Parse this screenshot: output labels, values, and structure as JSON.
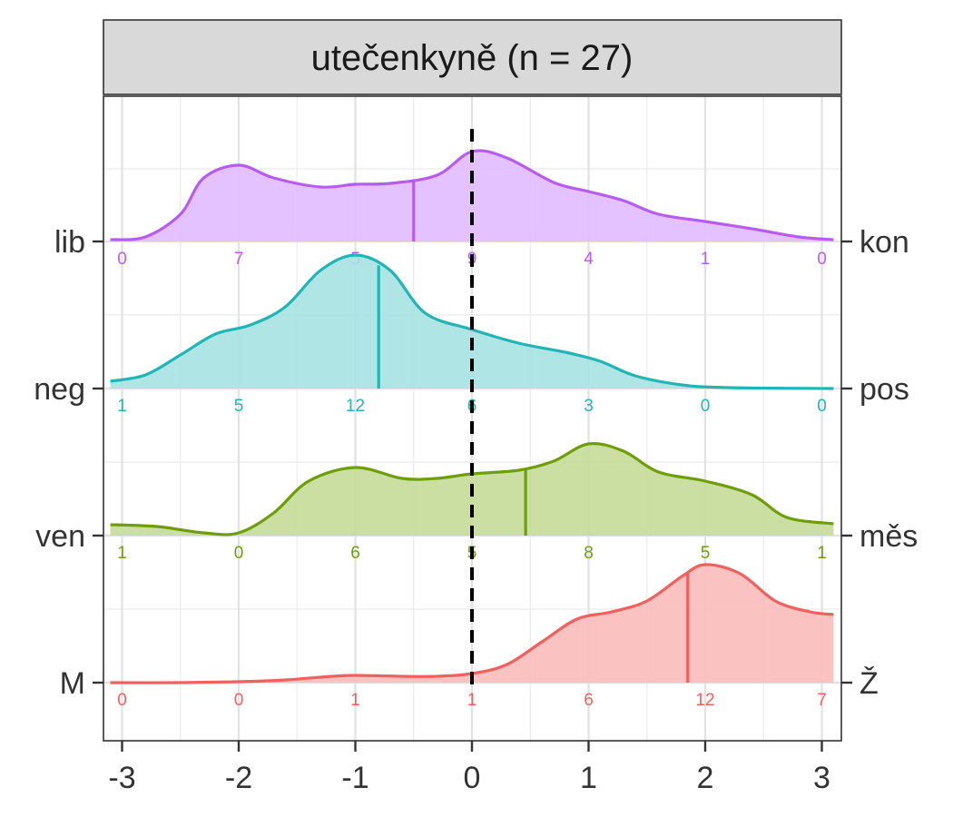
{
  "chart_data": {
    "type": "ridgeline-density",
    "title": "utečenkyně (n = 27)",
    "xlim": [
      -3.1,
      3.1
    ],
    "x_ticks": [
      -3,
      -2,
      -1,
      0,
      1,
      2,
      3
    ],
    "x_tick_labels": [
      "-3",
      "-2",
      "-1",
      "0",
      "1",
      "2",
      "3"
    ],
    "reference_line_x": 0,
    "grid": true,
    "series": [
      {
        "left_label": "lib",
        "right_label": "kon",
        "color": "#B65CF0",
        "fill": "#E1BBFF",
        "mean": -0.5,
        "count_x": [
          -3,
          -2,
          -1,
          0,
          1,
          2,
          3
        ],
        "counts": [
          "0",
          "7",
          "5",
          "9",
          "4",
          "1",
          "0"
        ],
        "density": [
          [
            -3.1,
            0.02
          ],
          [
            -2.8,
            0.05
          ],
          [
            -2.5,
            0.3
          ],
          [
            -2.3,
            0.7
          ],
          [
            -2.0,
            0.84
          ],
          [
            -1.7,
            0.7
          ],
          [
            -1.3,
            0.6
          ],
          [
            -1.0,
            0.63
          ],
          [
            -0.7,
            0.64
          ],
          [
            -0.3,
            0.73
          ],
          [
            0.0,
            0.99
          ],
          [
            0.3,
            0.92
          ],
          [
            0.7,
            0.65
          ],
          [
            1.0,
            0.55
          ],
          [
            1.3,
            0.45
          ],
          [
            1.6,
            0.3
          ],
          [
            2.0,
            0.22
          ],
          [
            2.4,
            0.14
          ],
          [
            2.8,
            0.05
          ],
          [
            3.1,
            0.02
          ]
        ]
      },
      {
        "left_label": "neg",
        "right_label": "pos",
        "color": "#21B5B5",
        "fill": "#A6E2E2",
        "mean": -0.8,
        "count_x": [
          -3,
          -2,
          -1,
          0,
          1,
          2,
          3
        ],
        "counts": [
          "1",
          "5",
          "12",
          "6",
          "3",
          "0",
          "0"
        ],
        "density": [
          [
            -3.1,
            0.08
          ],
          [
            -2.8,
            0.15
          ],
          [
            -2.5,
            0.37
          ],
          [
            -2.2,
            0.6
          ],
          [
            -1.9,
            0.7
          ],
          [
            -1.6,
            0.9
          ],
          [
            -1.3,
            1.3
          ],
          [
            -1.0,
            1.47
          ],
          [
            -0.7,
            1.3
          ],
          [
            -0.4,
            0.83
          ],
          [
            0.0,
            0.65
          ],
          [
            0.4,
            0.5
          ],
          [
            0.8,
            0.4
          ],
          [
            1.1,
            0.3
          ],
          [
            1.4,
            0.14
          ],
          [
            1.8,
            0.04
          ],
          [
            2.2,
            0.01
          ],
          [
            3.1,
            0.0
          ]
        ]
      },
      {
        "left_label": "ven",
        "right_label": "měs",
        "color": "#6E9F0A",
        "fill": "#C5DC99",
        "mean": 0.46,
        "count_x": [
          -3,
          -2,
          -1,
          0,
          1,
          2,
          3
        ],
        "counts": [
          "1",
          "0",
          "6",
          "5",
          "8",
          "5",
          "1"
        ],
        "density": [
          [
            -3.1,
            0.12
          ],
          [
            -2.7,
            0.1
          ],
          [
            -2.3,
            0.03
          ],
          [
            -2.0,
            0.03
          ],
          [
            -1.7,
            0.25
          ],
          [
            -1.4,
            0.6
          ],
          [
            -1.0,
            0.75
          ],
          [
            -0.6,
            0.63
          ],
          [
            -0.3,
            0.63
          ],
          [
            0.0,
            0.68
          ],
          [
            0.4,
            0.72
          ],
          [
            0.7,
            0.82
          ],
          [
            1.0,
            1.01
          ],
          [
            1.3,
            0.93
          ],
          [
            1.6,
            0.7
          ],
          [
            2.0,
            0.6
          ],
          [
            2.4,
            0.45
          ],
          [
            2.7,
            0.2
          ],
          [
            3.1,
            0.13
          ]
        ]
      },
      {
        "left_label": "M",
        "right_label": "Ž",
        "color": "#F0605E",
        "fill": "#F9BBB9",
        "mean": 1.85,
        "count_x": [
          -3,
          -2,
          -1,
          0,
          1,
          2,
          3
        ],
        "counts": [
          "0",
          "0",
          "1",
          "1",
          "6",
          "12",
          "7"
        ],
        "density": [
          [
            -3.1,
            0.0
          ],
          [
            -2.5,
            0.0
          ],
          [
            -2.0,
            0.01
          ],
          [
            -1.6,
            0.03
          ],
          [
            -1.2,
            0.07
          ],
          [
            -1.0,
            0.08
          ],
          [
            -0.6,
            0.07
          ],
          [
            -0.3,
            0.07
          ],
          [
            0.0,
            0.1
          ],
          [
            0.3,
            0.2
          ],
          [
            0.6,
            0.45
          ],
          [
            0.9,
            0.7
          ],
          [
            1.2,
            0.78
          ],
          [
            1.5,
            0.9
          ],
          [
            1.8,
            1.17
          ],
          [
            2.0,
            1.3
          ],
          [
            2.3,
            1.2
          ],
          [
            2.6,
            0.9
          ],
          [
            2.9,
            0.78
          ],
          [
            3.1,
            0.75
          ]
        ]
      }
    ]
  }
}
